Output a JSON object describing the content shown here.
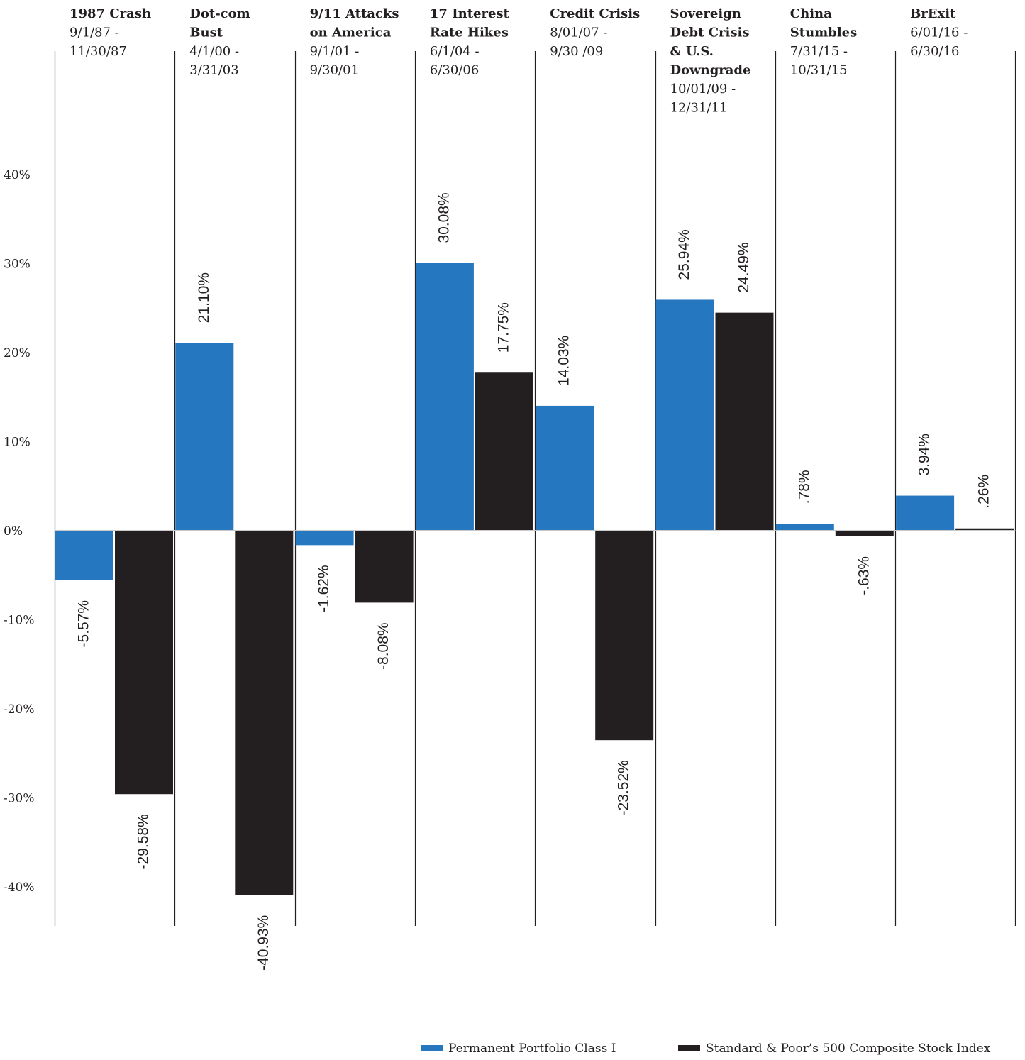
{
  "chart_data": {
    "type": "bar",
    "series": [
      {
        "name": "Permanent Portfolio Class I",
        "color": "#2577c0",
        "values": [
          -5.57,
          21.1,
          -1.62,
          30.08,
          14.03,
          25.94,
          0.78,
          3.94
        ]
      },
      {
        "name": "Standard & Poor’s 500 Composite Stock Index",
        "color": "#231f20",
        "values": [
          -29.58,
          -40.93,
          -8.08,
          17.75,
          -23.52,
          24.49,
          -0.63,
          0.26
        ]
      }
    ],
    "categories": [
      {
        "title": [
          "1987 Crash"
        ],
        "dates": [
          "9/1/87 -",
          "11/30/87"
        ]
      },
      {
        "title": [
          "Dot-com",
          "Bust"
        ],
        "dates": [
          "4/1/00 -",
          "3/31/03"
        ]
      },
      {
        "title": [
          "9/11 Attacks",
          "on America"
        ],
        "dates": [
          "9/1/01 -",
          "9/30/01"
        ]
      },
      {
        "title": [
          "17 Interest",
          "Rate Hikes"
        ],
        "dates": [
          "6/1/04 -",
          "6/30/06"
        ]
      },
      {
        "title": [
          "Credit Crisis"
        ],
        "dates": [
          "8/01/07 -",
          "9/30 /09"
        ]
      },
      {
        "title": [
          "Sovereign",
          "Debt Crisis",
          "& U.S.",
          "Downgrade"
        ],
        "dates": [
          "10/01/09 -",
          "12/31/11"
        ]
      },
      {
        "title": [
          "China",
          "Stumbles"
        ],
        "dates": [
          "7/31/15 -",
          "10/31/15"
        ]
      },
      {
        "title": [
          "BrExit"
        ],
        "dates": [
          "6/01/16 -",
          "6/30/16"
        ]
      }
    ],
    "value_labels": [
      [
        "-5.57%",
        "21.10%",
        "-1.62%",
        "30.08%",
        "14.03%",
        "25.94%",
        ".78%",
        "3.94%"
      ],
      [
        "-29.58%",
        "-40.93%",
        "-8.08%",
        "17.75%",
        "-23.52%",
        "24.49%",
        "-.63%",
        ".26%"
      ]
    ],
    "y_ticks": [
      {
        "value": 40,
        "label": "40%"
      },
      {
        "value": 30,
        "label": "30%"
      },
      {
        "value": 20,
        "label": "20%"
      },
      {
        "value": 10,
        "label": "10%"
      },
      {
        "value": 0,
        "label": "0%"
      },
      {
        "value": -10,
        "label": "-10%"
      },
      {
        "value": -20,
        "label": "-20%"
      },
      {
        "value": -30,
        "label": "-30%"
      },
      {
        "value": -40,
        "label": "-40%"
      }
    ],
    "ylim": [
      -40,
      40
    ],
    "grid": false,
    "legend_position": "bottom-right"
  }
}
